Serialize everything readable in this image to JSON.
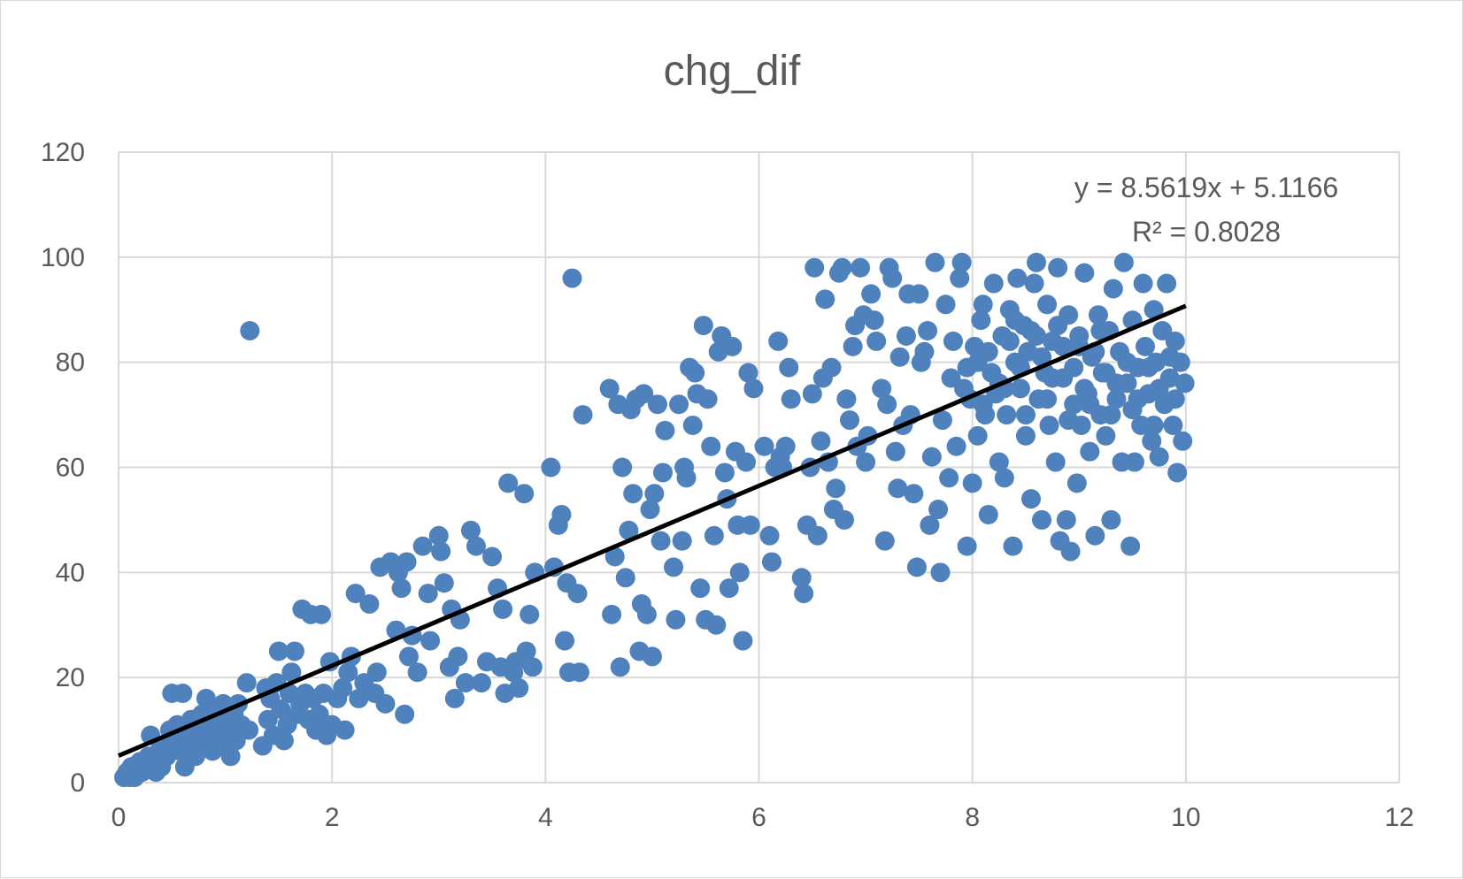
{
  "chart_data": {
    "type": "scatter",
    "title": "chg_dif",
    "xlabel": "",
    "ylabel": "",
    "xlim": [
      0,
      12
    ],
    "ylim": [
      0,
      120
    ],
    "x_ticks": [
      "0",
      "2",
      "4",
      "6",
      "8",
      "10",
      "12"
    ],
    "y_ticks": [
      "0",
      "20",
      "40",
      "60",
      "80",
      "100",
      "120"
    ],
    "grid": true,
    "marker_color": "#4f81bd",
    "trendline_color": "#000000",
    "trendline": {
      "slope": 8.5619,
      "intercept": 5.1166,
      "x_range": [
        0,
        10
      ],
      "equation_label": "y = 8.5619x + 5.1166",
      "r2_label": "R² = 0.8028"
    },
    "points": [
      [
        0.05,
        1
      ],
      [
        0.08,
        2
      ],
      [
        0.1,
        1
      ],
      [
        0.12,
        3
      ],
      [
        0.15,
        1
      ],
      [
        0.18,
        2
      ],
      [
        0.2,
        4
      ],
      [
        0.22,
        2
      ],
      [
        0.25,
        3
      ],
      [
        0.28,
        5
      ],
      [
        0.3,
        9
      ],
      [
        0.32,
        4
      ],
      [
        0.35,
        2
      ],
      [
        0.38,
        6
      ],
      [
        0.4,
        3
      ],
      [
        0.42,
        7
      ],
      [
        0.45,
        5
      ],
      [
        0.48,
        10
      ],
      [
        0.5,
        17
      ],
      [
        0.52,
        8
      ],
      [
        0.55,
        11
      ],
      [
        0.58,
        6
      ],
      [
        0.6,
        17
      ],
      [
        0.62,
        3
      ],
      [
        0.65,
        9
      ],
      [
        0.68,
        12
      ],
      [
        0.7,
        7
      ],
      [
        0.72,
        5
      ],
      [
        0.75,
        10
      ],
      [
        0.78,
        13
      ],
      [
        0.8,
        8
      ],
      [
        0.82,
        16
      ],
      [
        0.85,
        11
      ],
      [
        0.88,
        6
      ],
      [
        0.9,
        14
      ],
      [
        0.92,
        9
      ],
      [
        0.95,
        12
      ],
      [
        0.98,
        15
      ],
      [
        1.0,
        7
      ],
      [
        1.02,
        10
      ],
      [
        1.05,
        5
      ],
      [
        1.08,
        13
      ],
      [
        1.1,
        8
      ],
      [
        1.12,
        15
      ],
      [
        1.15,
        11
      ],
      [
        1.2,
        19
      ],
      [
        1.22,
        10
      ],
      [
        1.23,
        86
      ],
      [
        1.35,
        7
      ],
      [
        1.38,
        18
      ],
      [
        1.4,
        12
      ],
      [
        1.42,
        16
      ],
      [
        1.45,
        9
      ],
      [
        1.48,
        19
      ],
      [
        1.5,
        25
      ],
      [
        1.52,
        14
      ],
      [
        1.55,
        8
      ],
      [
        1.58,
        11
      ],
      [
        1.6,
        17
      ],
      [
        1.62,
        21
      ],
      [
        1.65,
        25
      ],
      [
        1.68,
        13
      ],
      [
        1.7,
        15
      ],
      [
        1.72,
        33
      ],
      [
        1.75,
        17
      ],
      [
        1.78,
        12
      ],
      [
        1.8,
        32
      ],
      [
        1.82,
        16
      ],
      [
        1.85,
        10
      ],
      [
        1.88,
        13
      ],
      [
        1.9,
        32
      ],
      [
        1.92,
        17
      ],
      [
        1.95,
        9
      ],
      [
        1.98,
        23
      ],
      [
        2.0,
        11
      ],
      [
        2.05,
        16
      ],
      [
        2.1,
        18
      ],
      [
        2.12,
        10
      ],
      [
        2.15,
        21
      ],
      [
        2.18,
        24
      ],
      [
        2.22,
        36
      ],
      [
        2.25,
        16
      ],
      [
        2.3,
        19
      ],
      [
        2.35,
        34
      ],
      [
        2.4,
        17
      ],
      [
        2.42,
        21
      ],
      [
        2.45,
        41
      ],
      [
        2.5,
        15
      ],
      [
        2.55,
        42
      ],
      [
        2.6,
        29
      ],
      [
        2.62,
        40
      ],
      [
        2.65,
        37
      ],
      [
        2.68,
        13
      ],
      [
        2.7,
        42
      ],
      [
        2.72,
        24
      ],
      [
        2.75,
        28
      ],
      [
        2.8,
        21
      ],
      [
        2.85,
        45
      ],
      [
        2.9,
        36
      ],
      [
        2.92,
        27
      ],
      [
        3.0,
        47
      ],
      [
        3.02,
        44
      ],
      [
        3.05,
        38
      ],
      [
        3.1,
        22
      ],
      [
        3.12,
        33
      ],
      [
        3.15,
        16
      ],
      [
        3.18,
        24
      ],
      [
        3.2,
        31
      ],
      [
        3.25,
        19
      ],
      [
        3.3,
        48
      ],
      [
        3.35,
        45
      ],
      [
        3.4,
        19
      ],
      [
        3.45,
        23
      ],
      [
        3.5,
        43
      ],
      [
        3.55,
        37
      ],
      [
        3.58,
        22
      ],
      [
        3.6,
        33
      ],
      [
        3.62,
        17
      ],
      [
        3.65,
        57
      ],
      [
        3.7,
        21
      ],
      [
        3.72,
        23
      ],
      [
        3.75,
        18
      ],
      [
        3.8,
        55
      ],
      [
        3.82,
        25
      ],
      [
        3.85,
        32
      ],
      [
        3.88,
        22
      ],
      [
        3.9,
        40
      ],
      [
        4.05,
        60
      ],
      [
        4.08,
        41
      ],
      [
        4.12,
        49
      ],
      [
        4.15,
        51
      ],
      [
        4.18,
        27
      ],
      [
        4.2,
        38
      ],
      [
        4.22,
        21
      ],
      [
        4.25,
        96
      ],
      [
        4.3,
        36
      ],
      [
        4.32,
        21
      ],
      [
        4.35,
        70
      ],
      [
        4.6,
        75
      ],
      [
        4.62,
        32
      ],
      [
        4.65,
        43
      ],
      [
        4.68,
        72
      ],
      [
        4.7,
        22
      ],
      [
        4.72,
        60
      ],
      [
        4.75,
        39
      ],
      [
        4.78,
        48
      ],
      [
        4.8,
        71
      ],
      [
        4.82,
        55
      ],
      [
        4.85,
        73
      ],
      [
        4.88,
        25
      ],
      [
        4.9,
        34
      ],
      [
        4.92,
        74
      ],
      [
        4.95,
        32
      ],
      [
        4.98,
        52
      ],
      [
        5.0,
        24
      ],
      [
        5.02,
        55
      ],
      [
        5.05,
        72
      ],
      [
        5.08,
        46
      ],
      [
        5.1,
        59
      ],
      [
        5.12,
        67
      ],
      [
        5.2,
        41
      ],
      [
        5.22,
        31
      ],
      [
        5.25,
        72
      ],
      [
        5.28,
        46
      ],
      [
        5.3,
        60
      ],
      [
        5.32,
        58
      ],
      [
        5.35,
        79
      ],
      [
        5.38,
        68
      ],
      [
        5.4,
        78
      ],
      [
        5.42,
        74
      ],
      [
        5.45,
        37
      ],
      [
        5.48,
        87
      ],
      [
        5.5,
        31
      ],
      [
        5.52,
        73
      ],
      [
        5.55,
        64
      ],
      [
        5.58,
        47
      ],
      [
        5.6,
        30
      ],
      [
        5.62,
        82
      ],
      [
        5.65,
        85
      ],
      [
        5.68,
        59
      ],
      [
        5.7,
        54
      ],
      [
        5.72,
        37
      ],
      [
        5.75,
        83
      ],
      [
        5.78,
        63
      ],
      [
        5.8,
        49
      ],
      [
        5.82,
        40
      ],
      [
        5.85,
        27
      ],
      [
        5.88,
        61
      ],
      [
        5.9,
        78
      ],
      [
        5.92,
        49
      ],
      [
        5.95,
        75
      ],
      [
        6.05,
        64
      ],
      [
        6.1,
        47
      ],
      [
        6.12,
        42
      ],
      [
        6.15,
        60
      ],
      [
        6.18,
        84
      ],
      [
        6.2,
        62
      ],
      [
        6.22,
        60
      ],
      [
        6.25,
        64
      ],
      [
        6.28,
        79
      ],
      [
        6.3,
        73
      ],
      [
        6.4,
        39
      ],
      [
        6.42,
        36
      ],
      [
        6.45,
        49
      ],
      [
        6.48,
        60
      ],
      [
        6.5,
        74
      ],
      [
        6.52,
        98
      ],
      [
        6.55,
        47
      ],
      [
        6.58,
        65
      ],
      [
        6.6,
        77
      ],
      [
        6.62,
        92
      ],
      [
        6.65,
        61
      ],
      [
        6.68,
        79
      ],
      [
        6.7,
        52
      ],
      [
        6.72,
        56
      ],
      [
        6.75,
        97
      ],
      [
        6.78,
        98
      ],
      [
        6.8,
        50
      ],
      [
        6.82,
        73
      ],
      [
        6.85,
        69
      ],
      [
        6.88,
        83
      ],
      [
        6.9,
        87
      ],
      [
        6.92,
        64
      ],
      [
        6.95,
        98
      ],
      [
        6.98,
        89
      ],
      [
        7.0,
        61
      ],
      [
        7.02,
        66
      ],
      [
        7.05,
        93
      ],
      [
        7.08,
        88
      ],
      [
        7.1,
        84
      ],
      [
        7.15,
        75
      ],
      [
        7.18,
        46
      ],
      [
        7.2,
        72
      ],
      [
        7.22,
        98
      ],
      [
        7.25,
        96
      ],
      [
        7.28,
        63
      ],
      [
        7.3,
        56
      ],
      [
        7.32,
        81
      ],
      [
        7.35,
        68
      ],
      [
        7.38,
        85
      ],
      [
        7.4,
        93
      ],
      [
        7.42,
        70
      ],
      [
        7.45,
        55
      ],
      [
        7.48,
        41
      ],
      [
        7.5,
        93
      ],
      [
        7.52,
        80
      ],
      [
        7.55,
        82
      ],
      [
        7.58,
        86
      ],
      [
        7.6,
        49
      ],
      [
        7.62,
        62
      ],
      [
        7.65,
        99
      ],
      [
        7.68,
        52
      ],
      [
        7.7,
        40
      ],
      [
        7.72,
        69
      ],
      [
        7.75,
        91
      ],
      [
        7.78,
        58
      ],
      [
        7.8,
        77
      ],
      [
        7.82,
        84
      ],
      [
        7.85,
        64
      ],
      [
        7.88,
        96
      ],
      [
        7.9,
        99
      ],
      [
        7.92,
        75
      ],
      [
        7.95,
        45
      ],
      [
        7.98,
        73
      ],
      [
        8.0,
        57
      ],
      [
        8.02,
        83
      ],
      [
        8.05,
        66
      ],
      [
        8.08,
        88
      ],
      [
        8.1,
        91
      ],
      [
        8.12,
        70
      ],
      [
        8.15,
        51
      ],
      [
        8.18,
        78
      ],
      [
        8.2,
        95
      ],
      [
        8.22,
        74
      ],
      [
        8.25,
        61
      ],
      [
        8.28,
        85
      ],
      [
        8.3,
        58
      ],
      [
        8.32,
        70
      ],
      [
        8.35,
        90
      ],
      [
        8.38,
        45
      ],
      [
        8.4,
        80
      ],
      [
        8.42,
        96
      ],
      [
        8.45,
        75
      ],
      [
        8.48,
        87
      ],
      [
        8.5,
        66
      ],
      [
        8.52,
        82
      ],
      [
        8.55,
        54
      ],
      [
        8.58,
        95
      ],
      [
        8.6,
        99
      ],
      [
        8.62,
        73
      ],
      [
        8.65,
        50
      ],
      [
        8.68,
        78
      ],
      [
        8.7,
        91
      ],
      [
        8.72,
        68
      ],
      [
        8.75,
        84
      ],
      [
        8.78,
        61
      ],
      [
        8.8,
        98
      ],
      [
        8.82,
        46
      ],
      [
        8.85,
        77
      ],
      [
        8.88,
        50
      ],
      [
        8.9,
        89
      ],
      [
        8.92,
        44
      ],
      [
        8.95,
        72
      ],
      [
        8.98,
        57
      ],
      [
        9.0,
        85
      ],
      [
        9.02,
        68
      ],
      [
        9.05,
        97
      ],
      [
        9.08,
        74
      ],
      [
        9.1,
        63
      ],
      [
        9.12,
        81
      ],
      [
        9.15,
        47
      ],
      [
        9.18,
        89
      ],
      [
        9.2,
        70
      ],
      [
        9.22,
        78
      ],
      [
        9.25,
        66
      ],
      [
        9.28,
        86
      ],
      [
        9.3,
        50
      ],
      [
        9.32,
        94
      ],
      [
        9.35,
        73
      ],
      [
        9.38,
        82
      ],
      [
        9.4,
        61
      ],
      [
        9.42,
        99
      ],
      [
        9.45,
        76
      ],
      [
        9.48,
        45
      ],
      [
        9.5,
        88
      ],
      [
        9.52,
        61
      ],
      [
        9.55,
        79
      ],
      [
        9.58,
        68
      ],
      [
        9.6,
        95
      ],
      [
        9.62,
        83
      ],
      [
        9.65,
        74
      ],
      [
        9.68,
        65
      ],
      [
        9.7,
        90
      ],
      [
        9.72,
        80
      ],
      [
        9.75,
        62
      ],
      [
        9.78,
        86
      ],
      [
        9.8,
        72
      ],
      [
        9.82,
        95
      ],
      [
        9.85,
        77
      ],
      [
        9.88,
        68
      ],
      [
        9.9,
        84
      ],
      [
        9.92,
        59
      ],
      [
        9.95,
        80
      ],
      [
        9.97,
        65
      ],
      [
        9.99,
        76
      ],
      [
        8.05,
        80
      ],
      [
        8.15,
        82
      ],
      [
        8.25,
        76
      ],
      [
        8.35,
        84
      ],
      [
        8.45,
        79
      ],
      [
        8.55,
        86
      ],
      [
        8.65,
        81
      ],
      [
        8.75,
        77
      ],
      [
        8.85,
        83
      ],
      [
        8.95,
        79
      ],
      [
        9.05,
        75
      ],
      [
        9.15,
        82
      ],
      [
        9.25,
        78
      ],
      [
        9.35,
        76
      ],
      [
        9.45,
        80
      ],
      [
        9.55,
        73
      ],
      [
        9.65,
        79
      ],
      [
        9.75,
        75
      ],
      [
        9.85,
        81
      ],
      [
        8.1,
        72
      ],
      [
        8.3,
        75
      ],
      [
        8.5,
        70
      ],
      [
        8.7,
        73
      ],
      [
        8.9,
        69
      ],
      [
        9.1,
        72
      ],
      [
        9.3,
        70
      ],
      [
        9.5,
        71
      ],
      [
        9.7,
        68
      ],
      [
        9.9,
        73
      ],
      [
        7.95,
        79
      ],
      [
        8.4,
        88
      ],
      [
        8.6,
        85
      ],
      [
        8.8,
        87
      ],
      [
        9.0,
        83
      ],
      [
        9.2,
        86
      ]
    ]
  }
}
